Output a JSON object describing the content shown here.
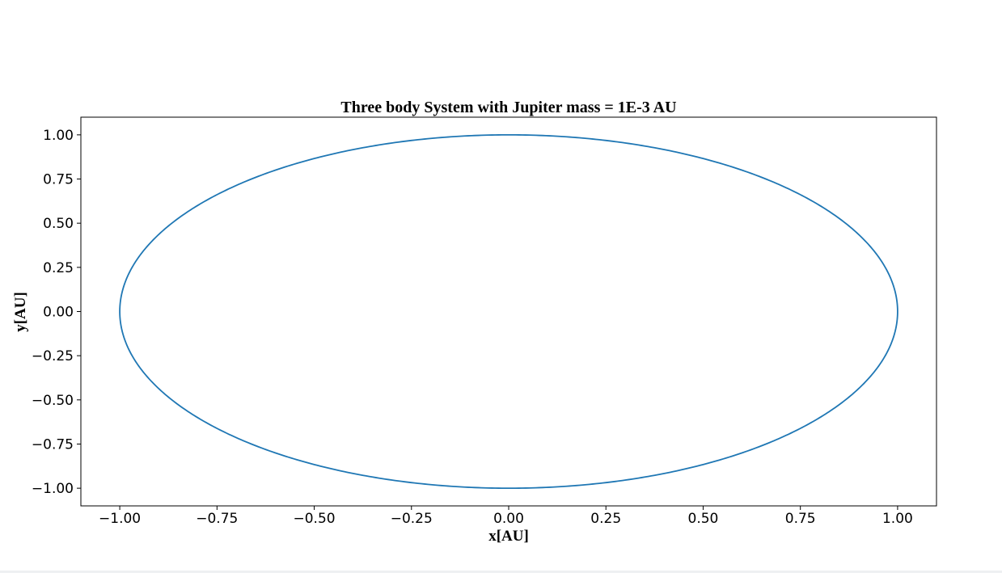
{
  "chart_data": {
    "type": "line",
    "title": "Three body System with Jupiter mass = 1E-3 AU",
    "xlabel": "x[AU]",
    "ylabel": "y[AU]",
    "xlim": [
      -1.1,
      1.1
    ],
    "ylim": [
      -1.1,
      1.1
    ],
    "xticks": [
      -1.0,
      -0.75,
      -0.5,
      -0.25,
      0.0,
      0.25,
      0.5,
      0.75,
      1.0
    ],
    "xtick_labels": [
      "−1.00",
      "−0.75",
      "−0.50",
      "−0.25",
      "0.00",
      "0.25",
      "0.50",
      "0.75",
      "1.00"
    ],
    "yticks": [
      1.0,
      0.75,
      0.5,
      0.25,
      0.0,
      -0.25,
      -0.5,
      -0.75,
      -1.0
    ],
    "ytick_labels": [
      "1.00",
      "0.75",
      "0.50",
      "0.25",
      "0.00",
      "−0.25",
      "−0.50",
      "−0.75",
      "−1.00"
    ],
    "grid": false,
    "series": [
      {
        "shape": "closed-orbit",
        "center": [
          0.0,
          0.0
        ],
        "radius": 1.0,
        "color": "#1f77b4"
      }
    ]
  }
}
